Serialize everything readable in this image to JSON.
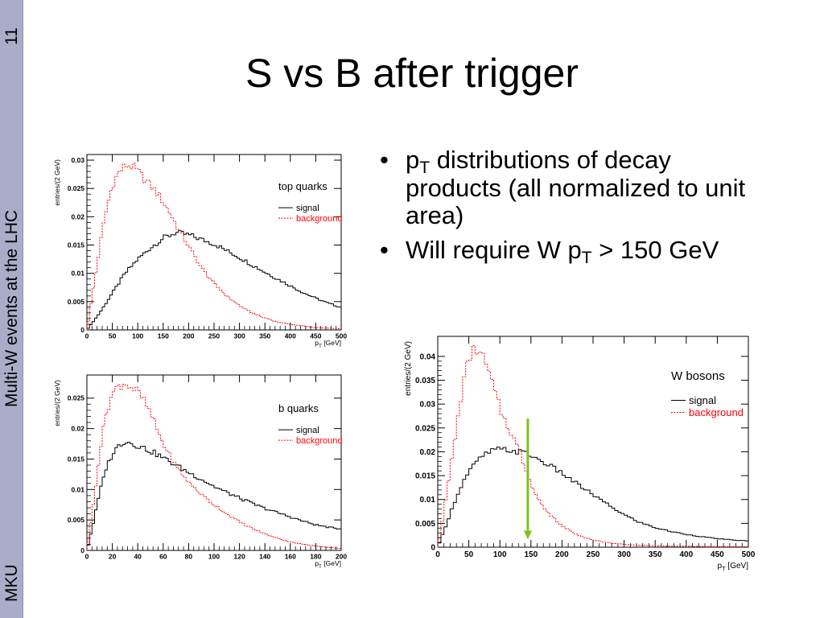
{
  "sidebar": {
    "slide_number": "11",
    "footer_title": "Multi-W events at the LHC",
    "footer_author": "MKU"
  },
  "slide": {
    "title": "S vs B after trigger",
    "bullets": [
      {
        "p": "p",
        "sub": "T",
        "text": " distributions of decay products (all normalized to unit area)"
      },
      {
        "p": "Will require W p",
        "sub": "T",
        "text": " > 150 GeV"
      }
    ]
  },
  "colors": {
    "signal": "#000000",
    "background": "#ff0000",
    "cut_arrow": "#7dc21e",
    "sidebar": "#a9adc8"
  },
  "chart_data": [
    {
      "id": "top",
      "type": "line",
      "title": "top quarks",
      "xlabel_main": "p",
      "xlabel_sub": "T",
      "xlabel_unit": " [GeV]",
      "ylabel": "entries/(2 GeV)",
      "xlim": [
        0,
        500
      ],
      "ylim": [
        0,
        0.031
      ],
      "xticks": [
        0,
        50,
        100,
        150,
        200,
        250,
        300,
        350,
        400,
        450,
        500
      ],
      "yticks": [
        0,
        0.005,
        0.01,
        0.015,
        0.02,
        0.025,
        0.03
      ],
      "ytick_labels": [
        "0",
        "0.005",
        "0.01",
        "0.015",
        "0.02",
        "0.025",
        "0.03"
      ],
      "legend": [
        "signal",
        "background"
      ],
      "series": [
        {
          "name": "signal",
          "style": "solid",
          "x": [
            0,
            25,
            50,
            75,
            100,
            125,
            150,
            175,
            200,
            225,
            250,
            275,
            300,
            325,
            350,
            375,
            400,
            425,
            450,
            475,
            500
          ],
          "y": [
            0,
            0.003,
            0.0065,
            0.01,
            0.0125,
            0.0145,
            0.0162,
            0.0172,
            0.0168,
            0.016,
            0.0152,
            0.014,
            0.0128,
            0.0115,
            0.0102,
            0.009,
            0.0078,
            0.0066,
            0.0056,
            0.0047,
            0.004
          ]
        },
        {
          "name": "background",
          "style": "dashed",
          "x": [
            0,
            10,
            20,
            30,
            40,
            50,
            60,
            70,
            80,
            90,
            100,
            120,
            140,
            160,
            180,
            200,
            225,
            250,
            275,
            300,
            325,
            350,
            375,
            400,
            450,
            500
          ],
          "y": [
            0,
            0.006,
            0.0115,
            0.0175,
            0.022,
            0.0255,
            0.0275,
            0.0285,
            0.0292,
            0.0288,
            0.028,
            0.026,
            0.024,
            0.0212,
            0.0178,
            0.0148,
            0.011,
            0.0082,
            0.006,
            0.0043,
            0.003,
            0.0021,
            0.0014,
            0.001,
            0.0004,
            0.0002
          ]
        }
      ]
    },
    {
      "id": "b",
      "type": "line",
      "title": "b quarks",
      "xlabel_main": "p",
      "xlabel_sub": "T",
      "xlabel_unit": " [GeV]",
      "ylabel": "entries/(2 GeV)",
      "xlim": [
        0,
        200
      ],
      "ylim": [
        0,
        0.0288
      ],
      "xticks": [
        0,
        20,
        40,
        60,
        80,
        100,
        120,
        140,
        160,
        180,
        200
      ],
      "yticks": [
        0,
        0.005,
        0.01,
        0.015,
        0.02,
        0.025
      ],
      "ytick_labels": [
        "0",
        "0.005",
        "0.01",
        "0.015",
        "0.02",
        "0.025"
      ],
      "legend": [
        "signal",
        "background"
      ],
      "series": [
        {
          "name": "signal",
          "style": "solid",
          "x": [
            0,
            5,
            10,
            15,
            20,
            25,
            30,
            35,
            40,
            45,
            50,
            55,
            60,
            70,
            80,
            90,
            100,
            110,
            120,
            130,
            140,
            150,
            160,
            170,
            180,
            190,
            200
          ],
          "y": [
            0,
            0.0045,
            0.0095,
            0.0135,
            0.0158,
            0.0172,
            0.018,
            0.0176,
            0.0172,
            0.0168,
            0.0163,
            0.0158,
            0.0152,
            0.014,
            0.0128,
            0.0117,
            0.0105,
            0.0095,
            0.0086,
            0.0077,
            0.0069,
            0.0062,
            0.0055,
            0.0048,
            0.0042,
            0.0038,
            0.0035
          ]
        },
        {
          "name": "background",
          "style": "dashed",
          "x": [
            0,
            5,
            10,
            15,
            20,
            25,
            30,
            35,
            40,
            45,
            50,
            55,
            60,
            70,
            80,
            90,
            100,
            110,
            120,
            130,
            140,
            150,
            160,
            170,
            180,
            190,
            200
          ],
          "y": [
            0,
            0.0075,
            0.016,
            0.0225,
            0.0258,
            0.027,
            0.0275,
            0.0268,
            0.026,
            0.0245,
            0.0225,
            0.02,
            0.0175,
            0.0138,
            0.0112,
            0.0092,
            0.0075,
            0.006,
            0.0047,
            0.0036,
            0.0027,
            0.002,
            0.0014,
            0.001,
            0.0007,
            0.0005,
            0.0003
          ]
        }
      ]
    },
    {
      "id": "w",
      "type": "line",
      "title": "W bosons",
      "xlabel_main": "p",
      "xlabel_sub": "T",
      "xlabel_unit": " [GeV]",
      "ylabel": "entries/(2 GeV)",
      "xlim": [
        0,
        500
      ],
      "ylim": [
        0,
        0.0442
      ],
      "xticks": [
        0,
        50,
        100,
        150,
        200,
        250,
        300,
        350,
        400,
        450,
        500
      ],
      "yticks": [
        0,
        0.005,
        0.01,
        0.015,
        0.02,
        0.025,
        0.03,
        0.035,
        0.04
      ],
      "ytick_labels": [
        "0",
        "0.005",
        "0.01",
        "0.015",
        "0.02",
        "0.025",
        "0.03",
        "0.035",
        "0.04"
      ],
      "legend": [
        "signal",
        "background"
      ],
      "cut_x": 145,
      "series": [
        {
          "name": "signal",
          "style": "solid",
          "x": [
            0,
            10,
            20,
            30,
            40,
            50,
            60,
            70,
            80,
            90,
            100,
            110,
            120,
            130,
            140,
            150,
            175,
            200,
            225,
            250,
            275,
            300,
            325,
            350,
            375,
            400,
            425,
            450,
            475,
            500
          ],
          "y": [
            0,
            0.0035,
            0.007,
            0.0105,
            0.0135,
            0.0158,
            0.0175,
            0.0188,
            0.0198,
            0.0203,
            0.0205,
            0.0204,
            0.0202,
            0.02,
            0.0198,
            0.0192,
            0.0175,
            0.0155,
            0.0132,
            0.011,
            0.0088,
            0.0068,
            0.0052,
            0.0041,
            0.0033,
            0.0027,
            0.0022,
            0.0018,
            0.0015,
            0.0013
          ]
        },
        {
          "name": "background",
          "style": "dashed",
          "x": [
            0,
            10,
            20,
            30,
            40,
            50,
            60,
            70,
            80,
            90,
            100,
            110,
            120,
            130,
            140,
            150,
            160,
            175,
            200,
            225,
            250,
            275,
            300,
            325,
            350,
            375,
            400,
            450,
            500
          ],
          "y": [
            0,
            0.0075,
            0.016,
            0.025,
            0.0335,
            0.0395,
            0.0418,
            0.0405,
            0.0375,
            0.0335,
            0.029,
            0.026,
            0.0235,
            0.0205,
            0.017,
            0.0135,
            0.0105,
            0.0075,
            0.0045,
            0.0026,
            0.0015,
            0.0009,
            0.0006,
            0.0004,
            0.0003,
            0.0002,
            0.0002,
            0.0001,
            0.0001
          ]
        }
      ]
    }
  ]
}
